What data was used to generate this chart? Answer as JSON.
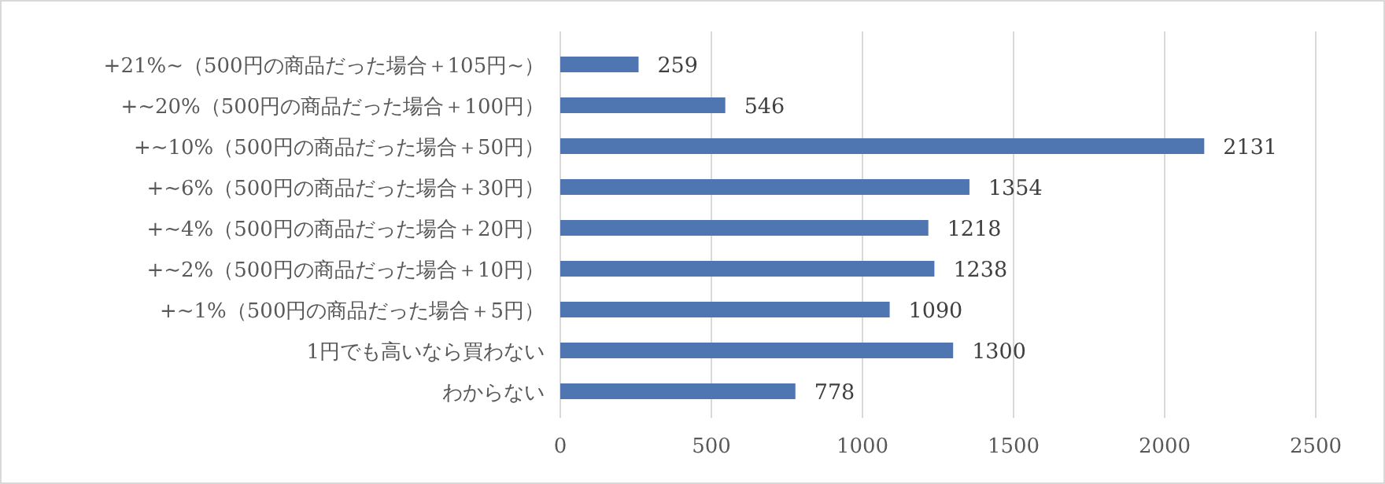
{
  "chart_data": {
    "type": "bar",
    "orientation": "horizontal",
    "categories": [
      "+21%~（500円の商品だった場合＋105円~）",
      "+~20%（500円の商品だった場合＋100円）",
      "+~10%（500円の商品だった場合＋50円）",
      "+~6%（500円の商品だった場合＋30円）",
      "+~4%（500円の商品だった場合＋20円）",
      "+~2%（500円の商品だった場合＋10円）",
      "+~1%（500円の商品だった場合＋5円）",
      "1円でも高いなら買わない",
      "わからない"
    ],
    "values": [
      259,
      546,
      2131,
      1354,
      1218,
      1238,
      1090,
      1300,
      778
    ],
    "color": "#4f76b0",
    "data_labels": true,
    "grid": "x",
    "xlim": [
      0,
      2500
    ],
    "xticks": [
      0,
      500,
      1000,
      1500,
      2000,
      2500
    ]
  }
}
